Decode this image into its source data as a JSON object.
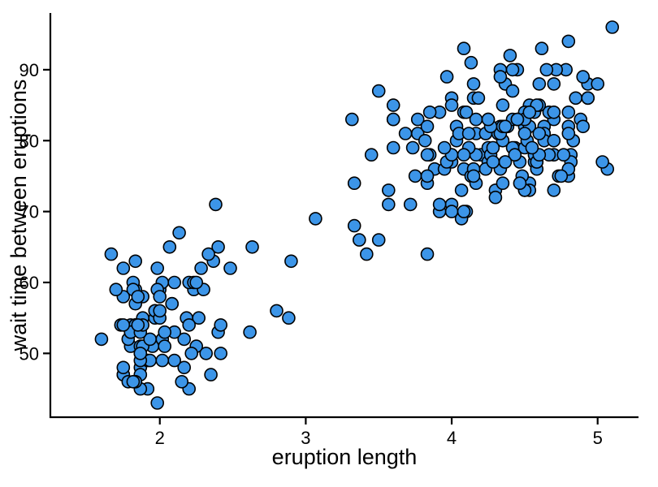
{
  "chart_data": {
    "type": "scatter",
    "title": "",
    "xlabel": "eruption length",
    "ylabel": "wait time between eruptions",
    "xlim": [
      1.25,
      5.28
    ],
    "ylim": [
      41,
      98
    ],
    "xticks": [
      2,
      3,
      4,
      5
    ],
    "yticks": [
      50,
      60,
      70,
      80,
      90
    ],
    "grid": false,
    "legend": null,
    "point_color": "#3c95e8",
    "point_edge_color": "#000000",
    "x": [
      3.6,
      1.8,
      3.333,
      2.283,
      4.533,
      2.883,
      4.7,
      3.6,
      1.95,
      4.35,
      1.833,
      3.917,
      4.2,
      1.75,
      4.7,
      2.167,
      1.75,
      4.8,
      1.6,
      4.25,
      1.8,
      1.75,
      3.45,
      3.067,
      4.533,
      3.6,
      1.967,
      4.083,
      3.85,
      4.433,
      4.3,
      4.467,
      3.367,
      4.033,
      3.833,
      2.017,
      1.867,
      4.833,
      1.833,
      4.783,
      4.35,
      1.883,
      4.567,
      1.75,
      4.533,
      3.317,
      3.833,
      2.1,
      4.633,
      2.0,
      4.8,
      4.716,
      1.833,
      4.833,
      1.733,
      4.883,
      3.717,
      1.667,
      4.567,
      4.317,
      2.233,
      4.5,
      1.75,
      4.8,
      1.817,
      4.4,
      4.167,
      4.7,
      2.067,
      4.7,
      4.033,
      1.967,
      4.5,
      4.0,
      1.983,
      5.067,
      2.017,
      4.567,
      3.883,
      3.6,
      4.133,
      4.333,
      4.1,
      2.633,
      4.067,
      4.933,
      3.95,
      4.517,
      2.167,
      4.0,
      2.2,
      4.333,
      1.867,
      4.817,
      1.833,
      4.3,
      4.667,
      3.75,
      1.867,
      4.9,
      2.483,
      4.367,
      2.1,
      4.5,
      4.05,
      1.867,
      4.7,
      1.783,
      4.85,
      3.683,
      4.733,
      2.3,
      4.9,
      4.417,
      1.7,
      4.633,
      2.317,
      4.6,
      1.817,
      4.417,
      2.617,
      4.067,
      4.25,
      1.967,
      4.6,
      3.767,
      1.917,
      4.5,
      2.267,
      4.65,
      1.867,
      4.167,
      2.8,
      4.333,
      1.833,
      4.383,
      1.883,
      4.933,
      2.033,
      3.733,
      4.233,
      2.233,
      4.533,
      4.817,
      4.333,
      1.983,
      4.633,
      2.017,
      5.1,
      1.8,
      5.033,
      4.0,
      2.4,
      4.6,
      3.567,
      4.0,
      4.5,
      4.083,
      1.8,
      3.967,
      2.2,
      4.15,
      2.0,
      3.833,
      3.5,
      4.583,
      2.367,
      5.0,
      1.933,
      4.617,
      1.917,
      2.083,
      4.583,
      3.333,
      4.167,
      4.333,
      4.5,
      2.417,
      4.0,
      4.167,
      1.883,
      4.583,
      4.25,
      3.767,
      2.033,
      4.433,
      4.083,
      1.833,
      4.417,
      2.183,
      4.8,
      1.833,
      4.8,
      4.1,
      3.966,
      4.233,
      3.5,
      4.366,
      2.25,
      4.667,
      2.1,
      4.35,
      4.133,
      1.867,
      4.6,
      1.783,
      4.367,
      3.85,
      1.933,
      4.5,
      2.383,
      4.7,
      1.867,
      3.833,
      3.417,
      4.233,
      2.4,
      4.8,
      2.0,
      4.15,
      1.867,
      4.267,
      1.75,
      4.483,
      4.0,
      4.117,
      4.083,
      4.267,
      3.917,
      4.55,
      4.083,
      2.417,
      4.183,
      2.217,
      4.45,
      1.883,
      1.85,
      4.283,
      3.95,
      2.333,
      4.15,
      2.35,
      4.933,
      2.9,
      4.583,
      3.833,
      2.083,
      4.367,
      2.133,
      4.35,
      2.2,
      4.45,
      3.567,
      4.5,
      4.15,
      3.817,
      3.917,
      4.45,
      2.0,
      4.283,
      4.767,
      4.533,
      1.85,
      4.25,
      1.983,
      2.25,
      4.75,
      4.117,
      2.15,
      4.417,
      1.817,
      4.467
    ],
    "y": [
      79,
      54,
      74,
      62,
      85,
      55,
      88,
      85,
      51,
      85,
      54,
      84,
      78,
      47,
      83,
      52,
      62,
      84,
      52,
      79,
      51,
      47,
      78,
      69,
      74,
      83,
      55,
      76,
      78,
      79,
      73,
      77,
      66,
      80,
      74,
      52,
      48,
      80,
      59,
      90,
      80,
      58,
      84,
      58,
      73,
      83,
      64,
      53,
      82,
      59,
      75,
      90,
      54,
      80,
      54,
      83,
      71,
      64,
      77,
      81,
      59,
      84,
      48,
      82,
      60,
      92,
      78,
      78,
      65,
      73,
      82,
      56,
      79,
      71,
      62,
      76,
      60,
      78,
      76,
      83,
      75,
      82,
      70,
      65,
      73,
      88,
      76,
      80,
      48,
      86,
      60,
      90,
      50,
      78,
      63,
      72,
      84,
      75,
      51,
      82,
      62,
      88,
      49,
      83,
      81,
      47,
      84,
      52,
      86,
      81,
      75,
      59,
      89,
      79,
      59,
      81,
      50,
      85,
      59,
      87,
      53,
      69,
      77,
      56,
      88,
      81,
      45,
      82,
      55,
      90,
      45,
      83,
      56,
      89,
      46,
      82,
      51,
      86,
      53,
      79,
      81,
      60,
      82,
      77,
      76,
      59,
      80,
      49,
      96,
      53,
      77,
      77,
      65,
      81,
      71,
      70,
      81,
      93,
      53,
      89,
      45,
      86,
      58,
      78,
      66,
      76,
      63,
      88,
      52,
      93,
      49,
      57,
      77,
      68,
      81,
      81,
      73,
      50,
      85,
      74,
      55,
      77,
      83,
      83,
      51,
      78,
      84,
      46,
      83,
      55,
      81,
      57,
      76,
      84,
      77,
      81,
      87,
      77,
      51,
      78,
      60,
      82,
      91,
      53,
      78,
      46,
      77,
      84,
      49,
      83,
      71,
      80,
      49,
      75,
      64,
      76,
      53,
      94,
      55,
      76,
      50,
      82,
      54,
      75,
      78,
      79,
      78,
      78,
      70,
      79,
      70,
      54,
      86,
      50,
      90,
      54,
      54,
      77,
      79,
      64,
      75,
      47,
      86,
      63,
      85,
      82,
      57,
      82,
      67,
      74,
      54,
      83,
      73,
      73,
      88,
      80,
      71,
      83,
      56,
      79,
      78,
      84,
      58,
      83,
      43,
      60,
      75,
      81,
      46,
      90,
      46,
      74
    ]
  }
}
